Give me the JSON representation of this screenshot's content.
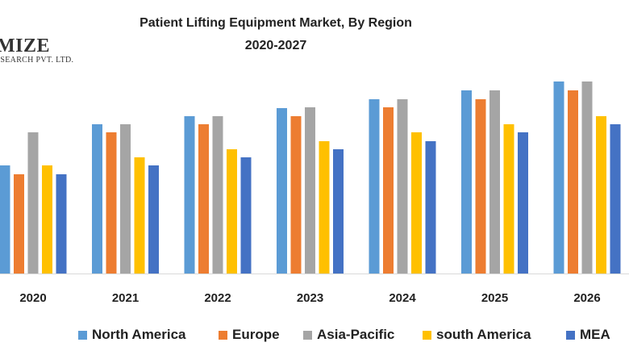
{
  "logo": {
    "name": "MIZE",
    "subtitle": "ESEARCH PVT. LTD."
  },
  "chart_data": {
    "type": "bar",
    "title": "Patient Lifting Equipment Market, By Region",
    "subtitle": "2020-2027",
    "categories": [
      "2020",
      "2021",
      "2022",
      "2023",
      "2024",
      "2025",
      "2026"
    ],
    "series": [
      {
        "name": "North America",
        "color": "#5b9bd5",
        "values": [
          134,
          185,
          195,
          205,
          216,
          227,
          238
        ]
      },
      {
        "name": "Europe",
        "color": "#ed7d31",
        "values": [
          123,
          175,
          185,
          195,
          206,
          216,
          227
        ]
      },
      {
        "name": "Asia-Pacific",
        "color": "#a5a5a5",
        "values": [
          175,
          185,
          195,
          206,
          216,
          227,
          238
        ]
      },
      {
        "name": "south  America",
        "color": "#ffc000",
        "values": [
          134,
          144,
          154,
          164,
          175,
          185,
          195
        ]
      },
      {
        "name": "MEA",
        "color": "#4472c4",
        "values": [
          123,
          134,
          144,
          154,
          164,
          175,
          185
        ]
      }
    ],
    "legend_position": "bottom",
    "grid": false
  }
}
